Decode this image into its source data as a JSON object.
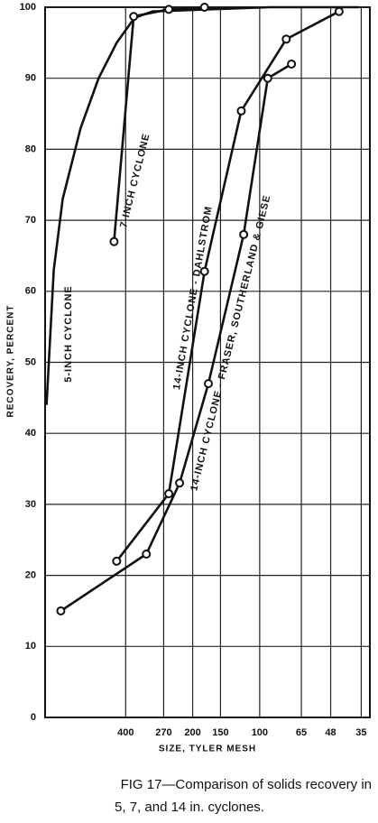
{
  "chart_data": {
    "type": "line",
    "caption_line1": "FIG 17—Comparison of solids recovery in",
    "caption_line2": "5, 7, and 14 in. cyclones.",
    "xlabel": "SIZE, TYLER MESH",
    "ylabel": "RECOVERY, PERCENT",
    "xscale": "log",
    "xlim": [
      920,
      32
    ],
    "xticks": [
      400,
      270,
      200,
      150,
      100,
      65,
      48,
      35
    ],
    "ylim": [
      0,
      100
    ],
    "yticks": [
      0,
      10,
      20,
      30,
      40,
      50,
      60,
      70,
      80,
      90,
      100
    ],
    "grid": true,
    "series": [
      {
        "name": "5-INCH CYCLONE",
        "color": "#111111",
        "markers": false,
        "x": [
          906,
          841,
          767,
          637,
          529,
          439,
          365,
          303,
          173,
          90,
          36
        ],
        "values": [
          44,
          63,
          73,
          83,
          90,
          95,
          98.5,
          99.4,
          99.7,
          100,
          100
        ]
      },
      {
        "name": "7-INCH CYCLONE",
        "color": "#111111",
        "markers": true,
        "x": [
          451,
          368,
          256,
          177
        ],
        "values": [
          67,
          98.7,
          99.7,
          100
        ]
      },
      {
        "name": "14-INCH CYCLONE - DAHLSTROM",
        "color": "#111111",
        "markers": true,
        "x": [
          439,
          256,
          177,
          121,
          76,
          44
        ],
        "values": [
          22,
          31.5,
          62.8,
          85.4,
          95.5,
          99.4
        ]
      },
      {
        "name": "14-INCH CYCLONE - FRASER, SOUTHERLAND & GIESE",
        "color": "#111111",
        "markers": true,
        "x": [
          782,
          323,
          229,
          170,
          118,
          92,
          72
        ],
        "values": [
          15,
          23,
          33,
          47,
          68,
          90,
          92
        ]
      }
    ]
  }
}
